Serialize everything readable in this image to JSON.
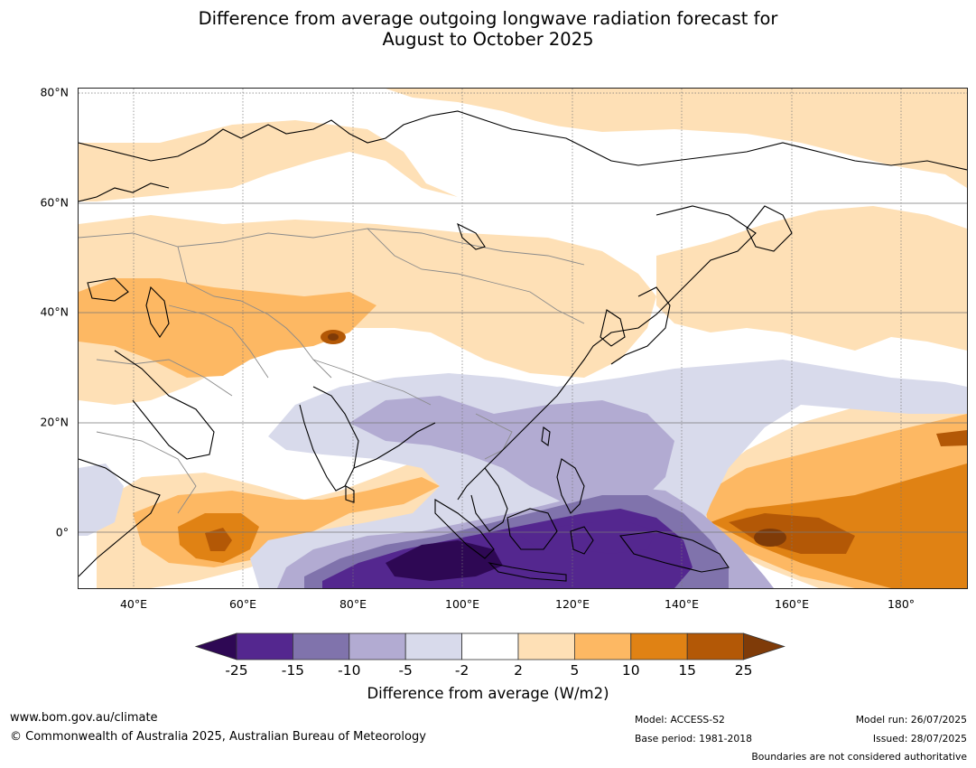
{
  "title": {
    "line1": "Difference from average outgoing longwave radiation forecast for",
    "line2": "August to October 2025"
  },
  "map": {
    "lat_labels": [
      "80°N",
      "60°N",
      "40°N",
      "20°N",
      "0°"
    ],
    "lon_labels": [
      "40°E",
      "60°E",
      "80°E",
      "100°E",
      "120°E",
      "140°E",
      "160°E",
      "180°"
    ],
    "extent": {
      "lon": [
        30,
        192
      ],
      "lat": [
        -10,
        80
      ]
    }
  },
  "colorbar": {
    "ticks": [
      "-25",
      "-15",
      "-10",
      "-5",
      "-2",
      "2",
      "5",
      "10",
      "15",
      "25"
    ],
    "colors": [
      "#2e0854",
      "#54278f",
      "#8073ac",
      "#b2abd2",
      "#d8daeb",
      "#ffffff",
      "#fee0b6",
      "#fdb863",
      "#e08214",
      "#b35806",
      "#7f3b08"
    ],
    "label": "Difference from average (W/m2)"
  },
  "footer": {
    "website": "www.bom.gov.au/climate",
    "copyright": "© Commonwealth of Australia 2025, Australian Bureau of Meteorology",
    "model": "Model: ACCESS-S2",
    "base_period": "Base period: 1981-2018",
    "model_run": "Model run: 26/07/2025",
    "issued": "Issued: 28/07/2025",
    "boundaries": "Boundaries are not considered authoritative"
  }
}
